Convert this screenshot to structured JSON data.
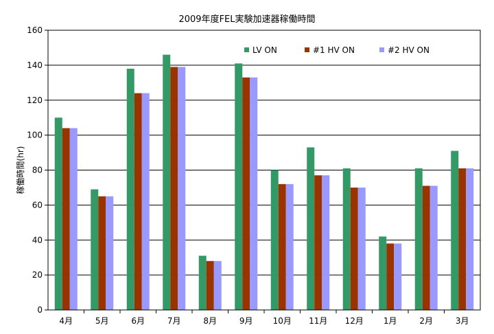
{
  "chart_data": {
    "type": "bar",
    "title": "2009年度FEL実験加速器稼働時間",
    "ylabel": "稼働時間(hr)",
    "xlabel": "",
    "ylim": [
      0,
      160
    ],
    "yticks": [
      0,
      20,
      40,
      60,
      80,
      100,
      120,
      140,
      160
    ],
    "grid": true,
    "legend_position": "top-right",
    "categories": [
      "4月",
      "5月",
      "6月",
      "7月",
      "8月",
      "9月",
      "10月",
      "11月",
      "12月",
      "1月",
      "2月",
      "3月"
    ],
    "series": [
      {
        "name": "LV ON",
        "color": "#339966",
        "values": [
          110,
          69,
          138,
          146,
          31,
          141,
          80,
          93,
          81,
          42,
          81,
          91
        ]
      },
      {
        "name": "#1  HV ON",
        "color": "#993300",
        "values": [
          104,
          65,
          124,
          139,
          28,
          133,
          72,
          77,
          70,
          38,
          71,
          81
        ]
      },
      {
        "name": "#2  HV ON",
        "color": "#9999ff",
        "values": [
          104,
          65,
          124,
          139,
          28,
          133,
          72,
          77,
          70,
          38,
          71,
          81
        ]
      }
    ]
  }
}
